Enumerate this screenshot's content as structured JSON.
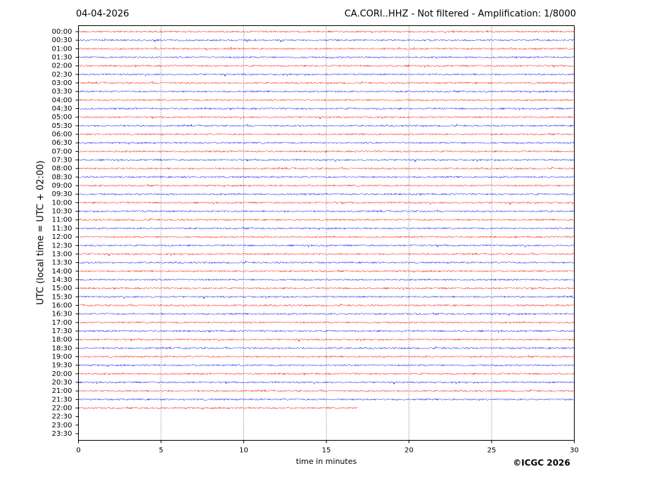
{
  "chart_data": {
    "type": "helicorder",
    "date": "04-04-2026",
    "title": "CA.CORI..HHZ - Not filtered - Amplification: 1/8000",
    "ylabel": "UTC (local time = UTC + 02:00)",
    "xlabel": "time in minutes",
    "credit": "©ICGC 2026",
    "categories": [
      "00:00",
      "00:30",
      "01:00",
      "01:30",
      "02:00",
      "02:30",
      "03:00",
      "03:30",
      "04:00",
      "04:30",
      "05:00",
      "05:30",
      "06:00",
      "06:30",
      "07:00",
      "07:30",
      "08:00",
      "08:30",
      "09:00",
      "09:30",
      "10:00",
      "10:30",
      "11:00",
      "11:30",
      "12:00",
      "12:30",
      "13:00",
      "13:30",
      "14:00",
      "14:30",
      "15:00",
      "15:30",
      "16:00",
      "16:30",
      "17:00",
      "17:30",
      "18:00",
      "18:30",
      "19:00",
      "19:30",
      "20:00",
      "20:30",
      "21:00",
      "21:30",
      "22:00",
      "22:30",
      "23:00",
      "23:30"
    ],
    "values": [
      30,
      30,
      30,
      30,
      30,
      30,
      30,
      30,
      30,
      30,
      30,
      30,
      30,
      30,
      30,
      30,
      30,
      30,
      30,
      30,
      30,
      30,
      30,
      30,
      30,
      30,
      30,
      30,
      30,
      30,
      30,
      30,
      30,
      30,
      30,
      30,
      30,
      30,
      30,
      30,
      30,
      30,
      30,
      30,
      16.9,
      null,
      null,
      null
    ],
    "colors": [
      "#ff0000",
      "#0000ff"
    ],
    "xlim": [
      0,
      30
    ],
    "xticks": [
      0,
      5,
      10,
      15,
      20,
      25,
      30
    ],
    "grid": true
  }
}
